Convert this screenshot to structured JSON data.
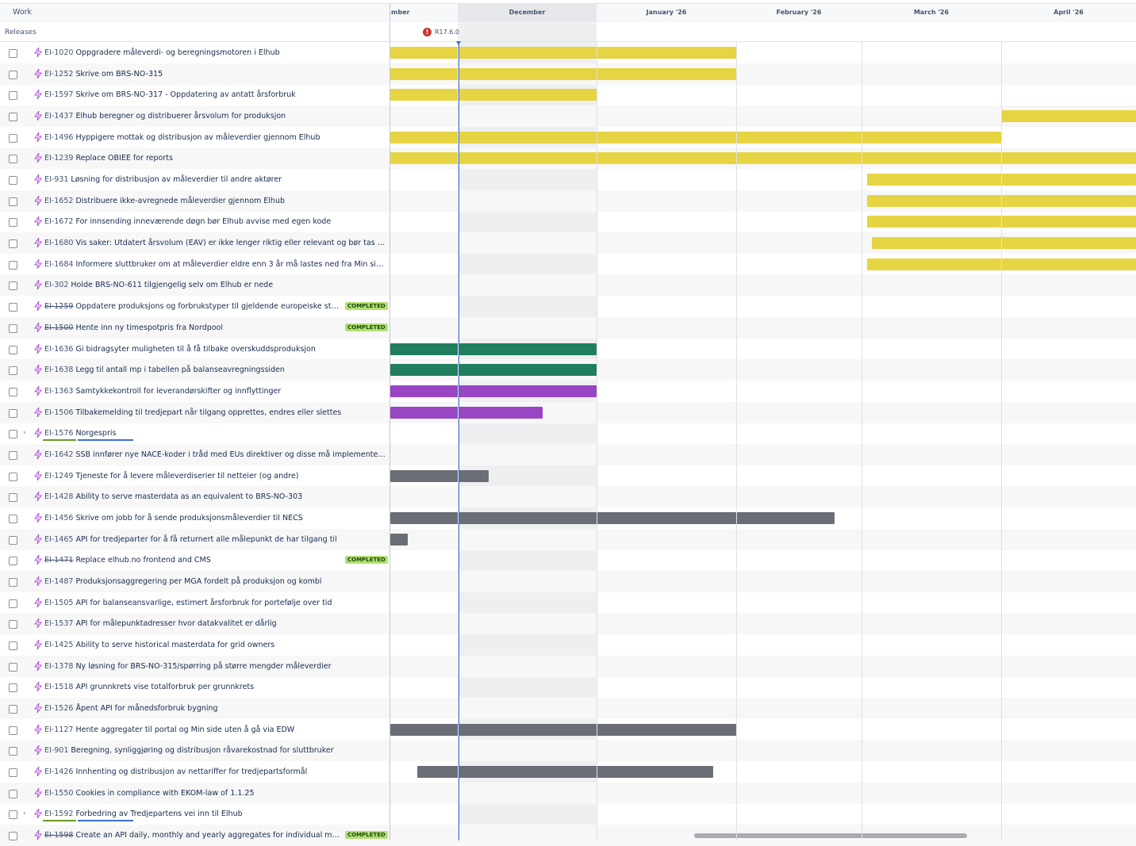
{
  "header": {
    "work": "Work",
    "releases": "Releases",
    "months": [
      "mber",
      "December",
      "January '26",
      "February '26",
      "March '26",
      "April '26"
    ]
  },
  "release": {
    "label": "R17.6.0"
  },
  "rows": [
    {
      "key": "EI-1020",
      "title": "Oppgradere måleverdi- og beregningsmotoren i Elhub"
    },
    {
      "key": "EI-1252",
      "title": "Skrive om BRS-NO-315"
    },
    {
      "key": "EI-1597",
      "title": "Skrive om BRS-NO-317 - Oppdatering av antatt årsforbruk"
    },
    {
      "key": "EI-1437",
      "title": "Elhub beregner og distribuerer årsvolum for produksjon"
    },
    {
      "key": "EI-1496",
      "title": "Hyppigere mottak og distribusjon av måleverdier gjennom Elhub"
    },
    {
      "key": "EI-1239",
      "title": "Replace OBIEE for reports"
    },
    {
      "key": "EI-931",
      "title": "Løsning for distribusjon av måleverdier til andre aktører"
    },
    {
      "key": "EI-1652",
      "title": "Distribuere ikke-avregnede måleverdier gjennom Elhub"
    },
    {
      "key": "EI-1672",
      "title": "For innsending inneværende døgn bør Elhub avvise med egen kode"
    },
    {
      "key": "EI-1680",
      "title": "Vis saker: Utdatert årsvolum (EAV) er ikke lenger riktig eller relevant og bør tas bort"
    },
    {
      "key": "EI-1684",
      "title": "Informere sluttbruker om at måleverdier eldre enn 3 år må lastes ned fra Min side ders..."
    },
    {
      "key": "EI-302",
      "title": "Holde BRS-NO-611 tilgjengelig selv om Elhub er nede"
    },
    {
      "key": "EI-1259",
      "title": "Oppdatere produksjons og forbrukstyper til gjeldende europeiske standar...",
      "completed": true,
      "badge": "COMPLETED"
    },
    {
      "key": "EI-1500",
      "title": "Hente inn ny timespotpris fra Nordpool",
      "completed": true,
      "badge": "COMPLETED"
    },
    {
      "key": "EI-1636",
      "title": "Gi bidragsyter muligheten til å få tilbake overskuddsproduksjon"
    },
    {
      "key": "EI-1638",
      "title": "Legg til antall mp i tabellen på balanseavregningssiden"
    },
    {
      "key": "EI-1363",
      "title": "Samtykkekontroll for leverandørskifter og innflyttinger"
    },
    {
      "key": "EI-1506",
      "title": "Tilbakemelding til tredjepart når tilgang opprettes, endres eller slettes"
    },
    {
      "key": "EI-1576",
      "title": "Norgespris",
      "expandable": true
    },
    {
      "key": "EI-1642",
      "title": "SSB innfører nye NACE-koder i tråd med EUs direktiver og disse må implementeres i El..."
    },
    {
      "key": "EI-1249",
      "title": "Tjeneste for å levere måleverdiserier til netteier (og andre)"
    },
    {
      "key": "EI-1428",
      "title": "Ability to serve masterdata as an equivalent to BRS-NO-303"
    },
    {
      "key": "EI-1456",
      "title": "Skrive om jobb for å sende produksjonsmåleverdier til NECS"
    },
    {
      "key": "EI-1465",
      "title": "API for tredjeparter for å få returnert alle målepunkt de har tilgang til"
    },
    {
      "key": "EI-1471",
      "title": "Replace elhub.no frontend and CMS",
      "completed": true,
      "badge": "COMPLETED"
    },
    {
      "key": "EI-1487",
      "title": "Produksjonsaggregering per MGA fordelt på produksjon og kombi"
    },
    {
      "key": "EI-1505",
      "title": "API for balanseansvarlige, estimert årsforbruk for portefølje over tid"
    },
    {
      "key": "EI-1537",
      "title": "API for målepunktadresser hvor datakvalitet er dårlig"
    },
    {
      "key": "EI-1425",
      "title": "Ability to serve historical masterdata for grid owners"
    },
    {
      "key": "EI-1378",
      "title": "Ny løsning for BRS-NO-315/spørring på større mengder måleverdier"
    },
    {
      "key": "EI-1518",
      "title": "API grunnkrets vise totalforbruk per grunnkrets"
    },
    {
      "key": "EI-1526",
      "title": "Åpent API for månedsforbruk bygning"
    },
    {
      "key": "EI-1127",
      "title": "Hente aggregater til portal og Min side uten å gå via EDW"
    },
    {
      "key": "EI-901",
      "title": "Beregning, synliggjøring og distribusjon råvarekostnad for sluttbruker"
    },
    {
      "key": "EI-1426",
      "title": "Innhenting og distribusjon av nettariffer for tredjepartsformål"
    },
    {
      "key": "EI-1550",
      "title": "Cookies in compliance with EKOM-law of 1.1.25"
    },
    {
      "key": "EI-1592",
      "title": "Forbedring av Tredjepartens vei inn til Elhub",
      "expandable": true
    },
    {
      "key": "EI-1598",
      "title": "Create an API daily, monthly and yearly aggregates for individual meterin...",
      "completed": true,
      "badge": "COMPLETED"
    }
  ]
}
